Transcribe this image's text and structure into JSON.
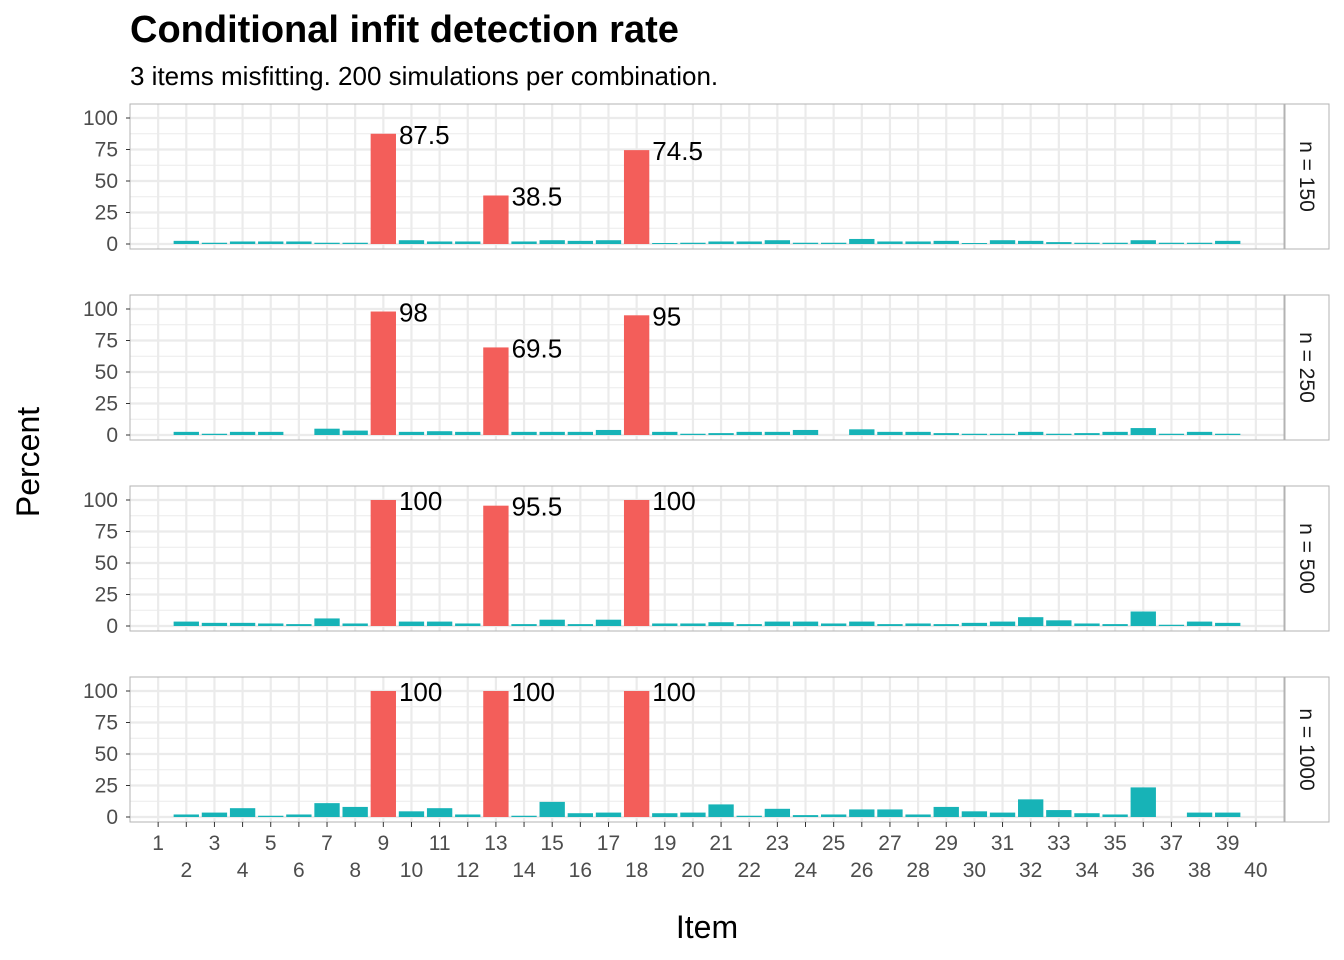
{
  "chart_data": {
    "type": "bar",
    "title": "Conditional infit detection rate",
    "subtitle": "3 items misfitting. 200 simulations per combination.",
    "xlabel": "Item",
    "ylabel": "Percent",
    "ylim": [
      0,
      100
    ],
    "yticks": [
      "0",
      "25",
      "50",
      "75",
      "100"
    ],
    "categories": [
      "1",
      "2",
      "3",
      "4",
      "5",
      "6",
      "7",
      "8",
      "9",
      "10",
      "11",
      "12",
      "13",
      "14",
      "15",
      "16",
      "17",
      "18",
      "19",
      "20",
      "21",
      "22",
      "23",
      "24",
      "25",
      "26",
      "27",
      "28",
      "29",
      "30",
      "31",
      "32",
      "33",
      "34",
      "35",
      "36",
      "37",
      "38",
      "39",
      "40"
    ],
    "colors": {
      "misfit": "#F35E5A",
      "fit": "#17B3B7",
      "grid": "#ebebeb",
      "strip_bg": "#ffffff",
      "panel_border": "#b3b3b3"
    },
    "misfit_items": [
      9,
      13,
      18
    ],
    "grid": true,
    "legend": "none",
    "panels": [
      {
        "strip": "n = 150",
        "values": [
          0,
          2.5,
          1,
          2,
          2,
          2,
          1,
          1,
          87.5,
          3,
          2,
          2,
          38.5,
          2,
          3,
          2.5,
          3,
          74.5,
          0.5,
          1,
          2,
          2,
          3,
          1,
          1,
          4,
          2,
          2,
          2.5,
          0.5,
          3,
          2.5,
          1.5,
          1,
          1,
          3,
          1,
          1,
          2.5,
          0
        ],
        "labels": [
          {
            "item": 9,
            "text": "87.5"
          },
          {
            "item": 13,
            "text": "38.5"
          },
          {
            "item": 18,
            "text": "74.5"
          }
        ]
      },
      {
        "strip": "n = 250",
        "values": [
          0,
          2.5,
          1,
          2.5,
          2.5,
          0,
          5,
          3.5,
          98,
          2.5,
          3,
          2.5,
          69.5,
          2.5,
          2.5,
          2.5,
          4,
          95,
          2.5,
          1,
          1.5,
          2.5,
          2.5,
          4,
          0,
          4.5,
          2.5,
          2.5,
          1.5,
          1,
          1,
          2.5,
          1,
          1.5,
          2.5,
          5.5,
          1,
          2.5,
          1,
          0
        ],
        "labels": [
          {
            "item": 9,
            "text": "98"
          },
          {
            "item": 13,
            "text": "69.5"
          },
          {
            "item": 18,
            "text": "95"
          }
        ]
      },
      {
        "strip": "n = 500",
        "values": [
          0,
          3.5,
          2.5,
          2.5,
          2,
          1.5,
          6,
          2,
          100,
          3.5,
          3.5,
          2,
          95.5,
          1.5,
          5,
          1.5,
          5,
          100,
          2,
          2,
          3,
          1.5,
          3.5,
          3.5,
          2,
          3.5,
          1.5,
          2,
          1.5,
          2.5,
          3.5,
          7,
          4.5,
          2,
          1.5,
          11.5,
          1,
          3.5,
          2.5,
          0
        ],
        "labels": [
          {
            "item": 9,
            "text": "100"
          },
          {
            "item": 13,
            "text": "95.5"
          },
          {
            "item": 18,
            "text": "100"
          }
        ]
      },
      {
        "strip": "n = 1000",
        "values": [
          0,
          2,
          3.5,
          7,
          1,
          2,
          11,
          8,
          100,
          4.5,
          7,
          2,
          100,
          1,
          12,
          3,
          3.5,
          100,
          3,
          3.5,
          10,
          1,
          6.5,
          1.5,
          2,
          6,
          6,
          2,
          8,
          4.5,
          3.5,
          14,
          5.5,
          3,
          2,
          23.5,
          0,
          3.5,
          3.5,
          0
        ],
        "labels": [
          {
            "item": 9,
            "text": "100"
          },
          {
            "item": 13,
            "text": "100"
          },
          {
            "item": 18,
            "text": "100"
          }
        ]
      }
    ]
  }
}
